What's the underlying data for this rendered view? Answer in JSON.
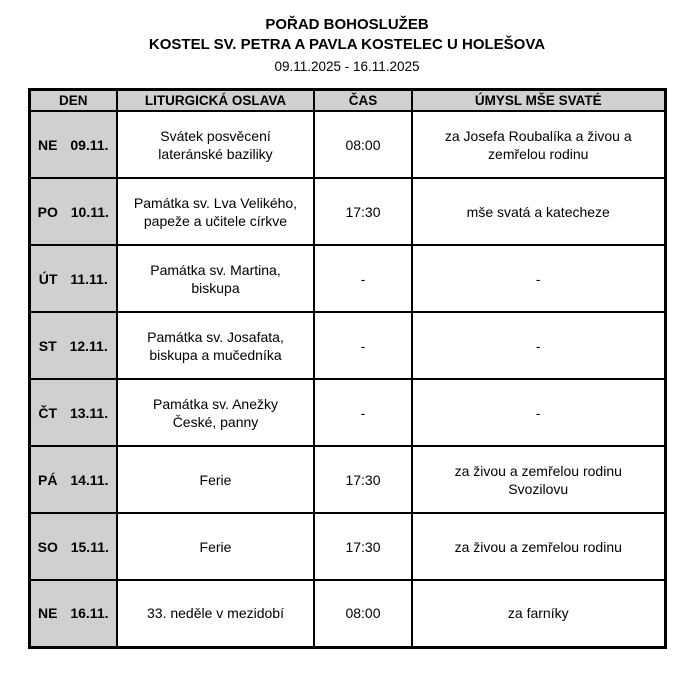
{
  "header": {
    "title": "POŘAD BOHOSLUŽEB",
    "subtitle": "KOSTEL SV. PETRA A PAVLA KOSTELEC U HOLEŠOVA",
    "date_range": "09.11.2025 - 16.11.2025"
  },
  "table": {
    "columns": [
      "DEN",
      "LITURGICKÁ OSLAVA",
      "ČAS",
      "ÚMYSL MŠE SVATÉ"
    ],
    "rows": [
      {
        "day": "NE",
        "date": "09.11.",
        "celebration": "Svátek posvěcení\nlateránské baziliky",
        "time": "08:00",
        "intention": "za Josefa Roubalíka a živou a\nzemřelou rodinu"
      },
      {
        "day": "PO",
        "date": "10.11.",
        "celebration": "Památka sv. Lva Velikého,\npapeže a učitele církve",
        "time": "17:30",
        "intention": "mše svatá a katecheze"
      },
      {
        "day": "ÚT",
        "date": "11.11.",
        "celebration": "Památka sv. Martina,\nbiskupa",
        "time": "-",
        "intention": "-"
      },
      {
        "day": "ST",
        "date": "12.11.",
        "celebration": "Památka sv. Josafata,\nbiskupa a mučedníka",
        "time": "-",
        "intention": "-"
      },
      {
        "day": "ČT",
        "date": "13.11.",
        "celebration": "Památka sv. Anežky\nČeské, panny",
        "time": "-",
        "intention": "-"
      },
      {
        "day": "PÁ",
        "date": "14.11.",
        "celebration": "Ferie",
        "time": "17:30",
        "intention": "za živou a zemřelou rodinu\nSvozilovu"
      },
      {
        "day": "SO",
        "date": "15.11.",
        "celebration": "Ferie",
        "time": "17:30",
        "intention": "za živou a zemřelou rodinu"
      },
      {
        "day": "NE",
        "date": "16.11.",
        "celebration": "33. neděle v mezidobí",
        "time": "08:00",
        "intention": "za farníky"
      }
    ]
  },
  "colors": {
    "header_bg": "#d0d0d0",
    "border": "#000000",
    "text": "#000000"
  }
}
